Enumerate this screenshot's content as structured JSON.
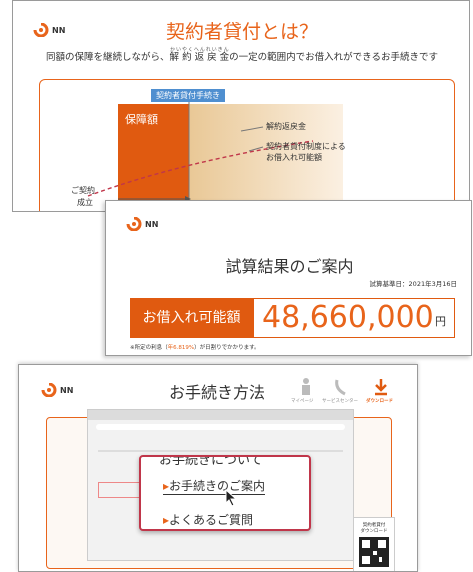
{
  "slides": [
    {
      "logo": "NN",
      "title": "契約者貸付とは？",
      "subtitle": {
        "before": "同額の保障を継続しながら、",
        "ruby_base": "解 約 返 戻 金",
        "ruby_text": "かいやくへんれいきん",
        "after": "の一定の範囲内でお借入れができるお手続きです"
      },
      "diagram": {
        "step_label": "契約者貸付手続き",
        "coverage": "保障額",
        "surrender": "解約返戻金",
        "loan_line1": "契約者貸付制度による",
        "loan_line2": "お借入れ可能額",
        "start_line1": "ご契約",
        "start_line2": "成立"
      }
    },
    {
      "logo": "NN",
      "title": "試算結果のご案内",
      "date": "試算基準日：2021年3月16日",
      "amount_label": "お借入れ可能額",
      "amount": "48,660,000",
      "unit": "円",
      "note": {
        "before": "※所定の利息（",
        "rate": "年6.819%",
        "after": "）が日割りでかかります。"
      }
    },
    {
      "logo": "NN",
      "title": "お手続き方法",
      "nav": [
        "マイページ",
        "サービスセンター",
        "ダウンロード"
      ],
      "popup": {
        "heading": "お手続きについて",
        "links": [
          "お手続きのご案内",
          "よくあるご質問"
        ]
      },
      "qr": {
        "line1": "契約者貸付",
        "line2": "ダウンロード"
      }
    }
  ]
}
